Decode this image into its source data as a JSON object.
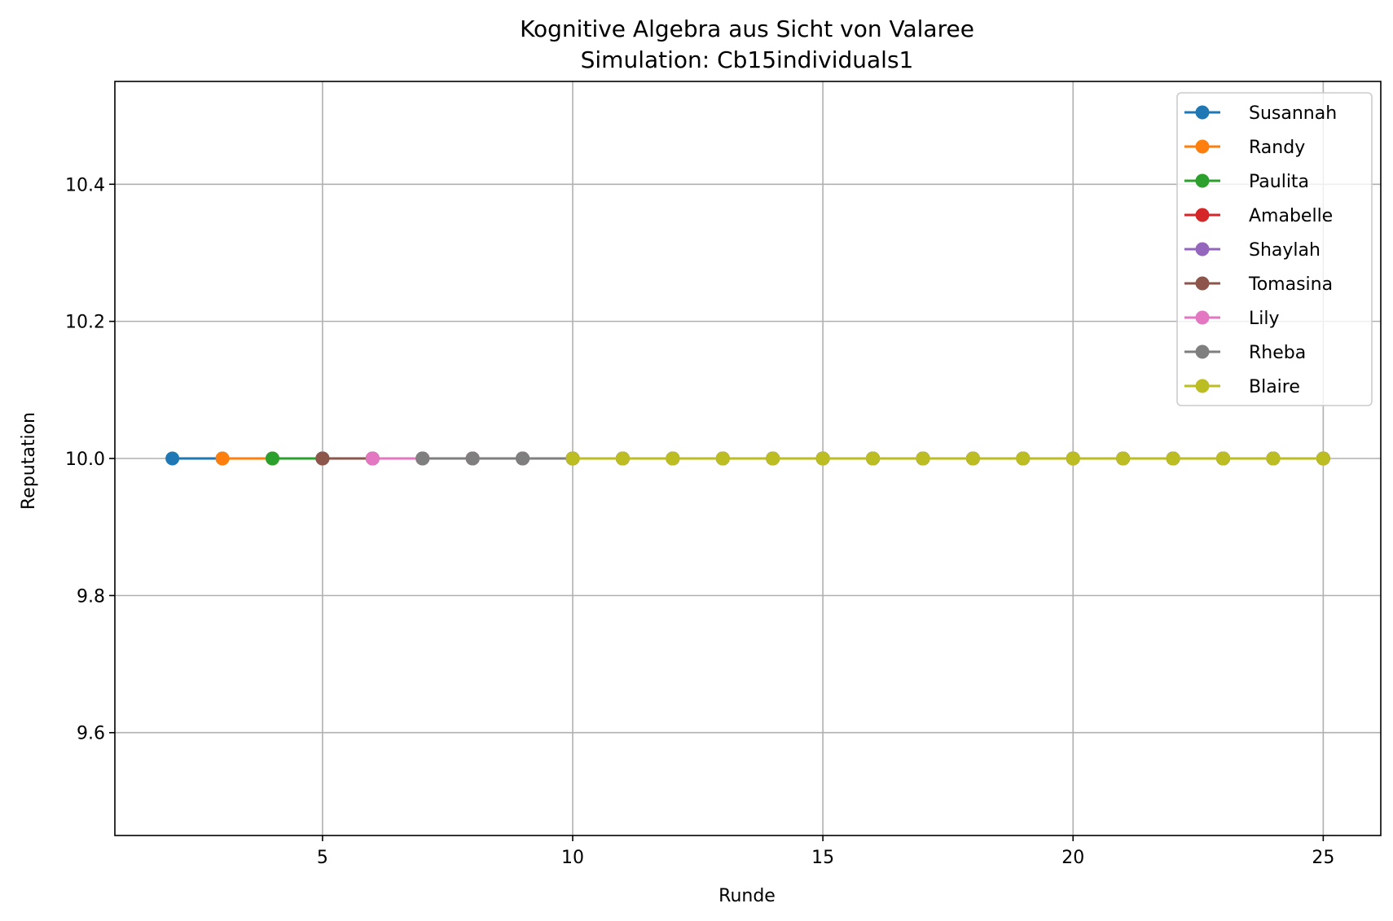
{
  "chart_data": {
    "type": "line",
    "title": "Kognitive Algebra aus Sicht von Valaree",
    "subtitle": "Simulation: Cb15individuals1",
    "xlabel": "Runde",
    "ylabel": "Reputation",
    "xlim": [
      0.85,
      26.15
    ],
    "ylim": [
      9.45,
      10.55
    ],
    "xticks": [
      5,
      10,
      15,
      20,
      25
    ],
    "xtick_labels": [
      "5",
      "10",
      "15",
      "20",
      "25"
    ],
    "yticks": [
      9.6,
      9.8,
      10.0,
      10.2,
      10.4
    ],
    "ytick_labels": [
      "9.6",
      "9.8",
      "10.0",
      "10.2",
      "10.4"
    ],
    "grid": true,
    "legend_position": "top-right",
    "series": [
      {
        "name": "Susannah",
        "color": "#1f77b4",
        "x": [
          2,
          3,
          4,
          5,
          6,
          7,
          8,
          9,
          10,
          11,
          12,
          13,
          14,
          15,
          16,
          17,
          18,
          19,
          20,
          21,
          22,
          23,
          24,
          25
        ],
        "y": [
          10,
          10,
          10,
          10,
          10,
          10,
          10,
          10,
          10,
          10,
          10,
          10,
          10,
          10,
          10,
          10,
          10,
          10,
          10,
          10,
          10,
          10,
          10,
          10
        ]
      },
      {
        "name": "Randy",
        "color": "#ff7f0e",
        "x": [
          3,
          4,
          5,
          6,
          7,
          8,
          9,
          10,
          11,
          12,
          13,
          14,
          15,
          16,
          17,
          18,
          19,
          20,
          21,
          22,
          23,
          24,
          25
        ],
        "y": [
          10,
          10,
          10,
          10,
          10,
          10,
          10,
          10,
          10,
          10,
          10,
          10,
          10,
          10,
          10,
          10,
          10,
          10,
          10,
          10,
          10,
          10,
          10
        ]
      },
      {
        "name": "Paulita",
        "color": "#2ca02c",
        "x": [
          4,
          5,
          6,
          7,
          8,
          9,
          10,
          11,
          12,
          13,
          14,
          15,
          16,
          17,
          18,
          19,
          20,
          21,
          22,
          23,
          24,
          25
        ],
        "y": [
          10,
          10,
          10,
          10,
          10,
          10,
          10,
          10,
          10,
          10,
          10,
          10,
          10,
          10,
          10,
          10,
          10,
          10,
          10,
          10,
          10,
          10
        ]
      },
      {
        "name": "Amabelle",
        "color": "#d62728",
        "x": [
          5,
          6,
          7,
          8,
          9,
          10,
          11,
          12,
          13,
          14,
          15,
          16,
          17,
          18,
          19,
          20,
          21,
          22,
          23,
          24,
          25
        ],
        "y": [
          10,
          10,
          10,
          10,
          10,
          10,
          10,
          10,
          10,
          10,
          10,
          10,
          10,
          10,
          10,
          10,
          10,
          10,
          10,
          10,
          10
        ]
      },
      {
        "name": "Shaylah",
        "color": "#9467bd",
        "x": [
          5,
          6,
          7,
          8,
          9,
          10,
          11,
          12,
          13,
          14,
          15,
          16,
          17,
          18,
          19,
          20,
          21,
          22,
          23,
          24,
          25
        ],
        "y": [
          10,
          10,
          10,
          10,
          10,
          10,
          10,
          10,
          10,
          10,
          10,
          10,
          10,
          10,
          10,
          10,
          10,
          10,
          10,
          10,
          10
        ]
      },
      {
        "name": "Tomasina",
        "color": "#8c564b",
        "x": [
          5,
          6,
          7,
          8,
          9,
          10,
          11,
          12,
          13,
          14,
          15,
          16,
          17,
          18,
          19,
          20,
          21,
          22,
          23,
          24,
          25
        ],
        "y": [
          10,
          10,
          10,
          10,
          10,
          10,
          10,
          10,
          10,
          10,
          10,
          10,
          10,
          10,
          10,
          10,
          10,
          10,
          10,
          10,
          10
        ]
      },
      {
        "name": "Lily",
        "color": "#e377c2",
        "x": [
          6,
          7,
          8,
          9,
          10,
          11,
          12,
          13,
          14,
          15,
          16,
          17,
          18,
          19,
          20,
          21,
          22,
          23,
          24,
          25
        ],
        "y": [
          10,
          10,
          10,
          10,
          10,
          10,
          10,
          10,
          10,
          10,
          10,
          10,
          10,
          10,
          10,
          10,
          10,
          10,
          10,
          10
        ]
      },
      {
        "name": "Rheba",
        "color": "#7f7f7f",
        "x": [
          7,
          8,
          9,
          10,
          11,
          12,
          13,
          14,
          15,
          16,
          17,
          18,
          19,
          20,
          21,
          22,
          23,
          24,
          25
        ],
        "y": [
          10,
          10,
          10,
          10,
          10,
          10,
          10,
          10,
          10,
          10,
          10,
          10,
          10,
          10,
          10,
          10,
          10,
          10,
          10
        ]
      },
      {
        "name": "Blaire",
        "color": "#bcbd22",
        "x": [
          10,
          11,
          12,
          13,
          14,
          15,
          16,
          17,
          18,
          19,
          20,
          21,
          22,
          23,
          24,
          25
        ],
        "y": [
          10,
          10,
          10,
          10,
          10,
          10,
          10,
          10,
          10,
          10,
          10,
          10,
          10,
          10,
          10,
          10
        ]
      }
    ]
  }
}
